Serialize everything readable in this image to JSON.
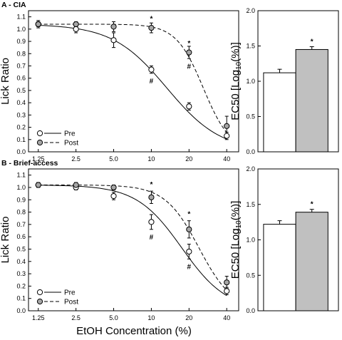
{
  "x_title": "EtOH Concentration (%)",
  "chart_data": [
    {
      "type": "line",
      "panel": "A - CIA",
      "ylabel": "Lick Ratio",
      "xscale": "log",
      "x_ticks": [
        "1.25",
        "2.5",
        "5.0",
        "10",
        "20",
        "40"
      ],
      "y_ticks": [
        "0.0",
        "0.1",
        "0.2",
        "0.3",
        "0.4",
        "0.5",
        "0.6",
        "0.7",
        "0.8",
        "0.9",
        "1.0",
        "1.1"
      ],
      "ylim": [
        0,
        1.15
      ],
      "x": [
        1.25,
        2.5,
        5,
        10,
        20,
        40
      ],
      "series": [
        {
          "name": "Pre",
          "line": "solid",
          "fill": "#ffffff",
          "values": [
            1.04,
            1.0,
            0.91,
            0.67,
            0.37,
            0.13
          ],
          "errors": [
            0.03,
            0.03,
            0.06,
            0.03,
            0.03,
            0.03
          ]
        },
        {
          "name": "Post",
          "line": "dashed",
          "fill": "#a6a6a6",
          "values": [
            1.04,
            1.04,
            1.02,
            1.01,
            0.81,
            0.21
          ],
          "errors": [
            0.02,
            0.02,
            0.04,
            0.04,
            0.05,
            0.08
          ]
        }
      ],
      "fits": {
        "Pre": {
          "ec50": 13.3,
          "hill": 2.0
        },
        "Post": {
          "ec50": 26.0,
          "hill": 4.0
        }
      },
      "annotations": [
        {
          "x": 10,
          "y": 1.09,
          "text": "*"
        },
        {
          "x": 10,
          "y": 0.58,
          "text": "#"
        },
        {
          "x": 20,
          "y": 0.89,
          "text": "*"
        },
        {
          "x": 20,
          "y": 0.7,
          "text": "#"
        }
      ],
      "legend": {
        "position": "bottom-left",
        "entries": [
          "Pre",
          "Post"
        ]
      }
    },
    {
      "type": "bar",
      "ylabel": "EC50 [Log10(%)]",
      "ylabel_main": "EC50 [Log",
      "ylabel_sub": "10",
      "ylabel_end": "(%)]",
      "y_ticks": [
        "0.0",
        "0.5",
        "1.0",
        "1.5",
        "2.0"
      ],
      "ylim": [
        0,
        2.0
      ],
      "categories": [
        "Pre",
        "Post"
      ],
      "values": [
        1.12,
        1.45
      ],
      "errors": [
        0.05,
        0.04
      ],
      "fills": [
        "#ffffff",
        "#c0c0c0"
      ],
      "annotations": [
        {
          "index": 1,
          "text": "*"
        }
      ]
    },
    {
      "type": "line",
      "panel": "B - Brief-access",
      "ylabel": "Lick Ratio",
      "xscale": "log",
      "x_ticks": [
        "1.25",
        "2.5",
        "5.0",
        "10",
        "20",
        "40"
      ],
      "y_ticks": [
        "0.0",
        "0.1",
        "0.2",
        "0.3",
        "0.4",
        "0.5",
        "0.6",
        "0.7",
        "0.8",
        "0.9",
        "1.0",
        "1.1"
      ],
      "ylim": [
        0,
        1.15
      ],
      "x": [
        1.25,
        2.5,
        5,
        10,
        20,
        40
      ],
      "series": [
        {
          "name": "Pre",
          "line": "solid",
          "fill": "#ffffff",
          "values": [
            1.02,
            1.0,
            0.93,
            0.72,
            0.48,
            0.16
          ],
          "errors": [
            0.02,
            0.02,
            0.03,
            0.06,
            0.06,
            0.03
          ]
        },
        {
          "name": "Post",
          "line": "dashed",
          "fill": "#a6a6a6",
          "values": [
            1.02,
            1.02,
            1.0,
            0.92,
            0.66,
            0.23
          ],
          "errors": [
            0.02,
            0.02,
            0.02,
            0.05,
            0.07,
            0.05
          ]
        }
      ],
      "fits": {
        "Pre": {
          "ec50": 17.5,
          "hill": 2.4
        },
        "Post": {
          "ec50": 24.0,
          "hill": 3.2
        }
      },
      "annotations": [
        {
          "x": 10,
          "y": 1.03,
          "text": "*"
        },
        {
          "x": 10,
          "y": 0.6,
          "text": "#"
        },
        {
          "x": 20,
          "y": 0.79,
          "text": "*"
        },
        {
          "x": 20,
          "y": 0.36,
          "text": "#"
        }
      ],
      "legend": {
        "position": "bottom-left",
        "entries": [
          "Pre",
          "Post"
        ]
      }
    },
    {
      "type": "bar",
      "ylabel": "EC50 [Log10(%)]",
      "ylabel_main": "EC50 [Log",
      "ylabel_sub": "10",
      "ylabel_end": "(%)]",
      "y_ticks": [
        "0.0",
        "0.5",
        "1.0",
        "1.5",
        "2.0"
      ],
      "ylim": [
        0,
        2.0
      ],
      "categories": [
        "Pre",
        "Post"
      ],
      "values": [
        1.22,
        1.39
      ],
      "errors": [
        0.05,
        0.04
      ],
      "fills": [
        "#ffffff",
        "#c0c0c0"
      ],
      "annotations": [
        {
          "index": 1,
          "text": "*"
        }
      ]
    }
  ]
}
